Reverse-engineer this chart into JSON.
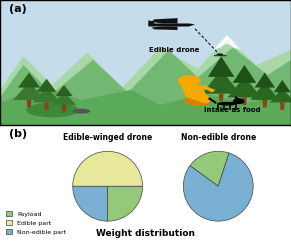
{
  "panel_a_bg": "#c5dcea",
  "panel_b_bg": "#ffffff",
  "pie1_title": "Edible-winged drone",
  "pie2_title": "Non-edible drone",
  "pie_subtitle": "Weight distribution",
  "legend_labels": [
    "Payload",
    "Edible part",
    "Non-edible part"
  ],
  "legend_colors": [
    "#95c97a",
    "#e8e89c",
    "#7ab0d4"
  ],
  "pie1_sizes": [
    25,
    50,
    25
  ],
  "pie1_startangle": 90,
  "pie2_sizes": [
    20,
    80
  ],
  "pie2_colors": [
    "#95c97a",
    "#7ab0d4"
  ],
  "pie2_startangle": 72,
  "label_a": "(a)",
  "label_b": "(b)",
  "sky_color": "#c5dcea",
  "mountain_far_color": "#8ec98e",
  "mountain_mid_color": "#5aad6e",
  "mountain_near_color": "#5aad6e",
  "ground_color": "#6bbf6b",
  "ground_dark_color": "#4a9a4a",
  "tree_dark": "#2a6b2a",
  "tree_mid": "#3a8a3a",
  "snow_color": "#e8f0f0",
  "drone_color": "#111111",
  "person_color": "#f5a800",
  "person_dark": "#d48000"
}
